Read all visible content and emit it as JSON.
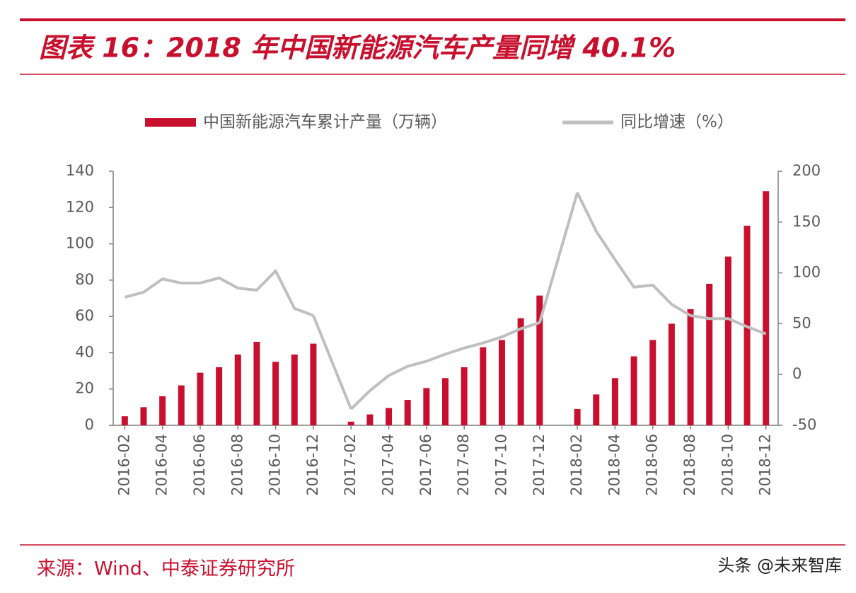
{
  "header": {
    "title": "图表 16：2018 年中国新能源汽车产量同增 40.1%"
  },
  "chart_data": {
    "type": "bar",
    "categories": [
      "2016-02",
      null,
      "2016-04",
      null,
      "2016-06",
      null,
      "2016-08",
      null,
      "2016-10",
      null,
      "2016-12",
      null,
      "2017-02",
      null,
      "2017-04",
      null,
      "2017-06",
      null,
      "2017-08",
      null,
      "2017-10",
      null,
      "2017-12",
      null,
      "2018-02",
      null,
      "2018-04",
      null,
      "2018-06",
      null,
      "2018-08",
      null,
      "2018-10",
      null,
      "2018-12"
    ],
    "series": [
      {
        "name": "中国新能源汽车累计产量（万辆）",
        "color": "#c8102e",
        "type": "bar",
        "values": [
          5,
          10,
          16,
          22,
          29,
          32,
          39,
          46,
          35,
          39,
          45,
          null,
          2,
          6,
          9.5,
          14,
          20.5,
          26,
          32,
          43,
          47,
          59,
          71.5,
          null,
          9,
          17,
          26,
          38,
          47,
          56,
          64,
          78,
          93,
          110,
          129
        ]
      },
      {
        "name": "同比增速（%）",
        "color": "#bfbfbf",
        "type": "line",
        "axis": "y2",
        "values": [
          76,
          81,
          94,
          90,
          90,
          95,
          85,
          83,
          102,
          65,
          58,
          null,
          -34,
          -16,
          -1,
          8,
          13,
          20,
          26,
          31,
          37,
          45,
          51,
          null,
          179,
          141,
          113,
          86,
          88,
          69,
          58,
          55,
          55,
          47,
          40
        ]
      }
    ],
    "ylim": [
      0,
      140
    ],
    "yticks": [
      0,
      20,
      40,
      60,
      80,
      100,
      120,
      140
    ],
    "y2lim": [
      -50,
      200
    ],
    "y2ticks": [
      -50,
      0,
      50,
      100,
      150,
      200
    ],
    "grid": false,
    "legend": "top"
  },
  "footer": {
    "source": "来源：Wind、中泰证券研究所",
    "watermark": "头条 @未来智库"
  }
}
